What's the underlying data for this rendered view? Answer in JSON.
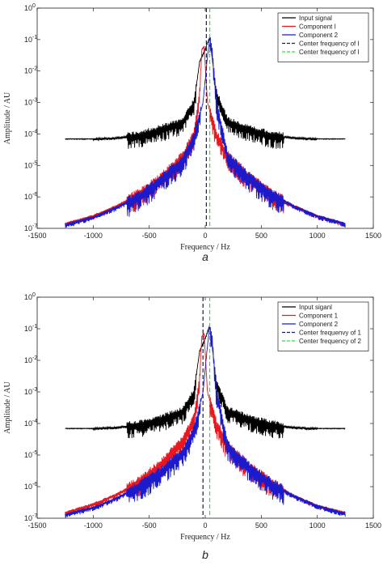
{
  "chart_data": [
    {
      "type": "line",
      "panel_label": "a",
      "xlabel": "Frequency / Hz",
      "ylabel": "Amplitude / AU",
      "xlim": [
        -1500,
        1500
      ],
      "ylim": [
        1e-07,
        1
      ],
      "yscale": "log",
      "xticks": [
        -1500,
        -1000,
        -500,
        0,
        500,
        1000,
        1500
      ],
      "yticks": [
        {
          "exp": "-7"
        },
        {
          "exp": "-6"
        },
        {
          "exp": "-5"
        },
        {
          "exp": "-4"
        },
        {
          "exp": "-3"
        },
        {
          "exp": "-2"
        },
        {
          "exp": "-1"
        },
        {
          "exp": "0"
        }
      ],
      "legend_position": "top-right",
      "grid": false,
      "series": [
        {
          "name": "Input signal",
          "color": "#000000",
          "x": [
            -1250,
            -1000,
            -800,
            -600,
            -400,
            -200,
            -100,
            -50,
            0,
            40,
            100,
            200,
            400,
            600,
            800,
            1000,
            1250
          ],
          "y": [
            7e-05,
            7e-05,
            7.5e-05,
            9e-05,
            0.00014,
            0.00025,
            0.001,
            0.02,
            0.05,
            0.12,
            0.002,
            0.00025,
            0.00014,
            9e-05,
            7.5e-05,
            7e-05,
            7e-05
          ]
        },
        {
          "name": "Component I",
          "color": "#e8181e",
          "x": [
            -1250,
            -1000,
            -800,
            -600,
            -400,
            -200,
            -100,
            -50,
            -30,
            -10,
            20,
            100,
            200,
            400,
            600,
            800,
            1000,
            1250
          ],
          "y": [
            1.4e-07,
            2.5e-07,
            5e-07,
            1.2e-06,
            4e-06,
            2e-05,
            0.0001,
            0.002,
            0.05,
            0.06,
            0.001,
            0.0001,
            2e-05,
            4e-06,
            1.2e-06,
            5e-07,
            2.5e-07,
            1.4e-07
          ]
        },
        {
          "name": "Component 2",
          "color": "#1b1bcc",
          "x": [
            -1250,
            -1000,
            -800,
            -600,
            -400,
            -200,
            -100,
            -20,
            20,
            40,
            60,
            100,
            200,
            400,
            600,
            800,
            1000,
            1250
          ],
          "y": [
            1.3e-07,
            2.3e-07,
            4.5e-07,
            1e-06,
            3.5e-06,
            1.5e-05,
            8e-05,
            0.001,
            0.03,
            0.12,
            0.05,
            0.001,
            2e-05,
            4e-06,
            1.2e-06,
            5e-07,
            2.5e-07,
            1.4e-07
          ]
        }
      ],
      "vlines": [
        {
          "name": "Center frequency of I",
          "x": 10,
          "color": "#1a1a5e",
          "dash": "5,3"
        },
        {
          "name": "Center frequency of I",
          "x": 40,
          "color": "#33dd33",
          "dash": "5,3"
        }
      ]
    },
    {
      "type": "line",
      "panel_label": "b",
      "xlabel": "Frequency / Hz",
      "ylabel": "Amplitude / AU",
      "xlim": [
        -1500,
        1500
      ],
      "ylim": [
        1e-07,
        1
      ],
      "yscale": "log",
      "xticks": [
        -1500,
        -1000,
        -500,
        0,
        500,
        1000,
        1500
      ],
      "yticks": [
        {
          "exp": "-7"
        },
        {
          "exp": "-6"
        },
        {
          "exp": "-5"
        },
        {
          "exp": "-4"
        },
        {
          "exp": "-3"
        },
        {
          "exp": "-2"
        },
        {
          "exp": "-1"
        },
        {
          "exp": "0"
        }
      ],
      "legend_position": "top-right",
      "grid": false,
      "series": [
        {
          "name": "Input siganl",
          "color": "#000000",
          "x": [
            -1250,
            -1000,
            -800,
            -600,
            -400,
            -200,
            -100,
            -50,
            0,
            40,
            100,
            200,
            400,
            600,
            800,
            1000,
            1250
          ],
          "y": [
            7e-05,
            7e-05,
            7.5e-05,
            9e-05,
            0.00014,
            0.00025,
            0.001,
            0.02,
            0.05,
            0.13,
            0.002,
            0.00025,
            0.00014,
            9e-05,
            7.5e-05,
            7e-05,
            7e-05
          ]
        },
        {
          "name": "Component 1",
          "color": "#e8181e",
          "x": [
            -1250,
            -1000,
            -800,
            -600,
            -400,
            -200,
            -100,
            -50,
            -30,
            -10,
            20,
            100,
            200,
            400,
            600,
            800,
            1000,
            1250
          ],
          "y": [
            1.5e-07,
            2.8e-07,
            5.5e-07,
            1.4e-06,
            5e-06,
            3e-05,
            0.00015,
            0.003,
            0.06,
            0.07,
            0.001,
            0.0001,
            2e-05,
            4e-06,
            1.3e-06,
            5e-07,
            2.5e-07,
            1.5e-07
          ]
        },
        {
          "name": "Component 2",
          "color": "#1b1bcc",
          "x": [
            -1250,
            -1000,
            -800,
            -600,
            -400,
            -200,
            -100,
            -20,
            20,
            40,
            60,
            100,
            200,
            400,
            600,
            800,
            1000,
            1250
          ],
          "y": [
            1.3e-07,
            2.2e-07,
            4.2e-07,
            1e-06,
            3e-06,
            1.2e-05,
            6e-05,
            0.001,
            0.03,
            0.13,
            0.05,
            0.001,
            2e-05,
            4e-06,
            1.2e-06,
            5e-07,
            2.5e-07,
            1.4e-07
          ]
        }
      ],
      "vlines": [
        {
          "name": "Center frequenvy of 1",
          "x": -20,
          "color": "#1a1a5e",
          "dash": "5,3"
        },
        {
          "name": "Center frequency of 2",
          "x": 40,
          "color": "#33dd33",
          "dash": "5,3"
        }
      ]
    }
  ]
}
